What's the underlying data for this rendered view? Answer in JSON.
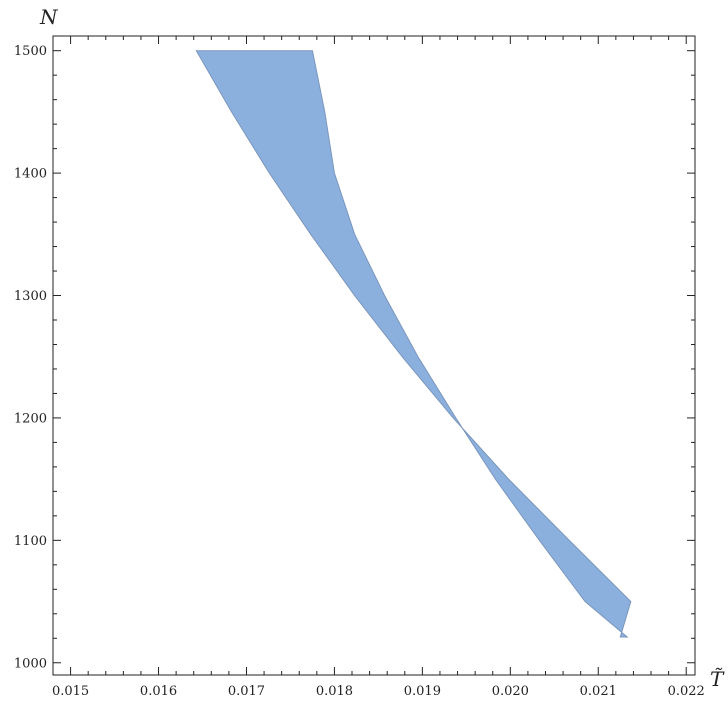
{
  "chart_data": {
    "type": "area",
    "title": "",
    "xlabel": "T̃",
    "ylabel": "N",
    "xlim": [
      0.0148,
      0.0221
    ],
    "ylim": [
      990,
      1512
    ],
    "xticks": [
      0.015,
      0.016,
      0.017,
      0.018,
      0.019,
      0.02,
      0.021,
      0.022
    ],
    "xtick_labels": [
      "0.015",
      "0.016",
      "0.017",
      "0.018",
      "0.019",
      "0.020",
      "0.021",
      "0.022"
    ],
    "yticks": [
      1000,
      1100,
      1200,
      1300,
      1400,
      1500
    ],
    "ytick_labels": [
      "1000",
      "1100",
      "1200",
      "1300",
      "1400",
      "1500"
    ],
    "grid": false,
    "fill_color": "#8cb0de",
    "edge_color": "#7a96bd",
    "region": {
      "left_boundary": [
        {
          "x": 0.01643,
          "y": 1500
        },
        {
          "x": 0.01683,
          "y": 1450
        },
        {
          "x": 0.01726,
          "y": 1400
        },
        {
          "x": 0.01773,
          "y": 1350
        },
        {
          "x": 0.01823,
          "y": 1300
        },
        {
          "x": 0.01877,
          "y": 1250
        },
        {
          "x": 0.01935,
          "y": 1200
        },
        {
          "x": 0.01998,
          "y": 1150
        },
        {
          "x": 0.02067,
          "y": 1100
        },
        {
          "x": 0.02137,
          "y": 1050
        },
        {
          "x": 0.02125,
          "y": 1021
        }
      ],
      "right_boundary": [
        {
          "x": 0.02133,
          "y": 1021
        },
        {
          "x": 0.02085,
          "y": 1050
        },
        {
          "x": 0.02033,
          "y": 1100
        },
        {
          "x": 0.01983,
          "y": 1150
        },
        {
          "x": 0.01938,
          "y": 1200
        },
        {
          "x": 0.01895,
          "y": 1250
        },
        {
          "x": 0.01857,
          "y": 1300
        },
        {
          "x": 0.01823,
          "y": 1350
        },
        {
          "x": 0.018,
          "y": 1400
        },
        {
          "x": 0.01789,
          "y": 1450
        },
        {
          "x": 0.01775,
          "y": 1500
        }
      ]
    }
  }
}
